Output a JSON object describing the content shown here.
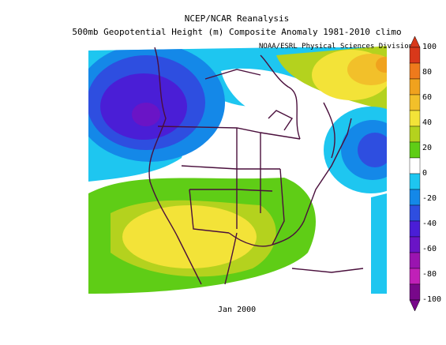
{
  "title": {
    "line1": "NCEP/NCAR Reanalysis",
    "line2": "500mb Geopotential Height (m) Composite Anomaly 1981-2010 climo"
  },
  "credit": "NOAA/ESRL Physical Sciences Division",
  "date_label": "Jan 2000",
  "colorbar": {
    "ticks": [
      "100",
      "80",
      "60",
      "40",
      "20",
      "0",
      "-20",
      "-40",
      "-60",
      "-80",
      "-100"
    ],
    "colors": [
      "#d8381a",
      "#ee7a1c",
      "#f0a21e",
      "#f2c02a",
      "#f3e338",
      "#b4d21e",
      "#5fcd16",
      "#ffffff",
      "#1ec6f0",
      "#1488e8",
      "#2e4ee0",
      "#4a1ed6",
      "#6a14c6",
      "#9a14b0",
      "#c020b8",
      "#78088a"
    ]
  },
  "map": {
    "region": "North America",
    "features": {
      "negative_center_northwest": "#6a14c6",
      "negative_center_east": "#2e4ee0",
      "positive_center_southwest": "#f3e338",
      "positive_center_northeast": "#f2c02a"
    },
    "coastline_color": "#4a0f3c"
  }
}
